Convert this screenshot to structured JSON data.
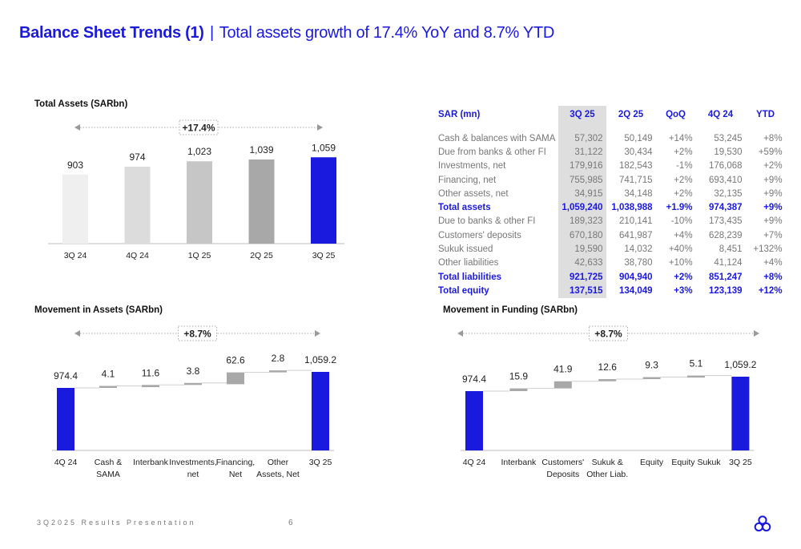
{
  "header": {
    "title_bold": "Balance Sheet Trends (1)",
    "separator": "|",
    "subtitle": "Total assets growth of 17.4% YoY and 8.7% YTD"
  },
  "colors": {
    "accent": "#1a1adf",
    "highlight_col": "#dedede",
    "grey_bar": "#a8a8a8"
  },
  "chart_data": [
    {
      "id": "total_assets",
      "type": "bar",
      "title": "Total Assets (SARbn)",
      "categories": [
        "3Q 24",
        "4Q 24",
        "1Q 25",
        "2Q 25",
        "3Q 25"
      ],
      "values": [
        903,
        974,
        1023,
        1039,
        1059
      ],
      "labels": [
        "903",
        "974",
        "1,023",
        "1,039",
        "1,059"
      ],
      "bar_colors": [
        "#efefef",
        "#dcdcdc",
        "#c6c6c6",
        "#a8a8a8",
        "#1a1adf"
      ],
      "growth_label": "+17.4%"
    },
    {
      "id": "movement_assets",
      "type": "waterfall",
      "title": "Movement in Assets (SARbn)",
      "categories": [
        "4Q 24",
        "Cash & SAMA",
        "Interbank",
        "Investments, net",
        "Financing, Net",
        "Other Assets, Net",
        "3Q 25"
      ],
      "category_lines": [
        [
          "4Q 24"
        ],
        [
          "Cash &",
          "SAMA"
        ],
        [
          "Interbank"
        ],
        [
          "Investments,",
          "net"
        ],
        [
          "Financing,",
          "Net"
        ],
        [
          "Other",
          "Assets, Net"
        ],
        [
          "3Q 25"
        ]
      ],
      "values": [
        974.4,
        4.1,
        11.6,
        3.8,
        62.6,
        2.8,
        1059.2
      ],
      "labels": [
        "974.4",
        "4.1",
        "11.6",
        "3.8",
        "62.6",
        "2.8",
        "1,059.2"
      ],
      "growth_label": "+8.7%"
    },
    {
      "id": "movement_funding",
      "type": "waterfall",
      "title": "Movement in Funding (SARbn)",
      "categories": [
        "4Q 24",
        "Interbank",
        "Customers' Deposits",
        "Sukuk & Other Liab.",
        "Equity",
        "Equity Sukuk",
        "3Q 25"
      ],
      "category_lines": [
        [
          "4Q 24"
        ],
        [
          "Interbank"
        ],
        [
          "Customers'",
          "Deposits"
        ],
        [
          "Sukuk &",
          "Other Liab."
        ],
        [
          "Equity"
        ],
        [
          "Equity Sukuk"
        ],
        [
          "3Q 25"
        ]
      ],
      "values": [
        974.4,
        15.9,
        41.9,
        12.6,
        9.3,
        5.1,
        1059.2
      ],
      "labels": [
        "974.4",
        "15.9",
        "41.9",
        "12.6",
        "9.3",
        "5.1",
        "1,059.2"
      ],
      "growth_label": "+8.7%"
    }
  ],
  "table": {
    "headers": [
      "SAR (mn)",
      "3Q 25",
      "2Q 25",
      "QoQ",
      "4Q 24",
      "YTD"
    ],
    "rows": [
      {
        "label": "Cash & balances with SAMA",
        "cells": [
          "57,302",
          "50,149",
          "+14%",
          "53,245",
          "+8%"
        ],
        "bold": false
      },
      {
        "label": "Due from banks & other FI",
        "cells": [
          "31,122",
          "30,434",
          "+2%",
          "19,530",
          "+59%"
        ],
        "bold": false
      },
      {
        "label": "Investments, net",
        "cells": [
          "179,916",
          "182,543",
          "-1%",
          "176,068",
          "+2%"
        ],
        "bold": false
      },
      {
        "label": "Financing, net",
        "cells": [
          "755,985",
          "741,715",
          "+2%",
          "693,410",
          "+9%"
        ],
        "bold": false
      },
      {
        "label": "Other assets, net",
        "cells": [
          "34,915",
          "34,148",
          "+2%",
          "32,135",
          "+9%"
        ],
        "bold": false
      },
      {
        "label": "Total assets",
        "cells": [
          "1,059,240",
          "1,038,988",
          "+1.9%",
          "974,387",
          "+9%"
        ],
        "bold": true
      },
      {
        "label": "Due to banks & other FI",
        "cells": [
          "189,323",
          "210,141",
          "-10%",
          "173,435",
          "+9%"
        ],
        "bold": false
      },
      {
        "label": "Customers' deposits",
        "cells": [
          "670,180",
          "641,987",
          "+4%",
          "628,239",
          "+7%"
        ],
        "bold": false
      },
      {
        "label": "Sukuk issued",
        "cells": [
          "19,590",
          "14,032",
          "+40%",
          "8,451",
          "+132%"
        ],
        "bold": false
      },
      {
        "label": "Other liabilities",
        "cells": [
          "42,633",
          "38,780",
          "+10%",
          "41,124",
          "+4%"
        ],
        "bold": false
      },
      {
        "label": "Total liabilities",
        "cells": [
          "921,725",
          "904,940",
          "+2%",
          "851,247",
          "+8%"
        ],
        "bold": true
      },
      {
        "label": "Total equity",
        "cells": [
          "137,515",
          "134,049",
          "+3%",
          "123,139",
          "+12%"
        ],
        "bold": true
      }
    ]
  },
  "footer": {
    "text": "3Q2025 Results Presentation",
    "page": "6"
  },
  "logo": {
    "icon": "bank-logo-icon"
  }
}
